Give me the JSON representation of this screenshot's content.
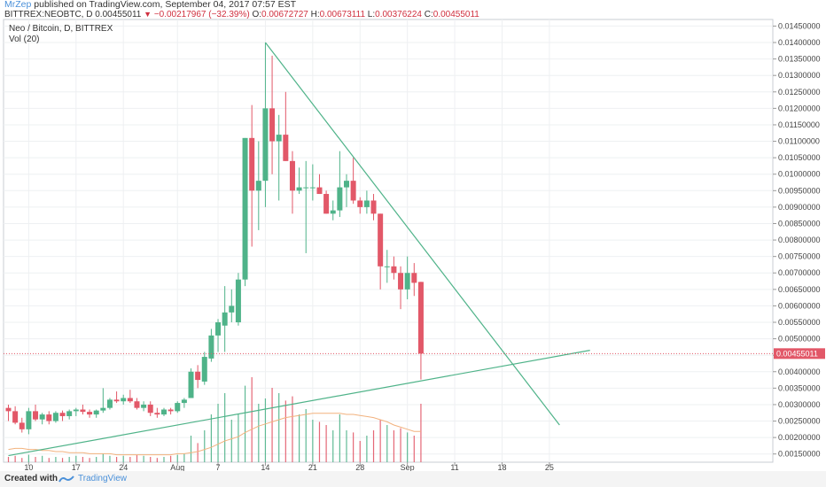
{
  "header": {
    "author": "MrZep",
    "published": " published on TradingView.com, September 04, 2017 07:57 EST",
    "symbol": "BITTREX:NEOBTC, D",
    "price": "0.00455011",
    "change": "−0.00217967 (−32.39%)",
    "o_label": "O:",
    "o_value": "0.00672727",
    "h_label": "H:",
    "h_value": "0.00673111",
    "l_label": "L:",
    "l_value": "0.00376224",
    "c_label": "C:",
    "c_value": "0.00455011"
  },
  "legend": {
    "title": "Neo / Bitcoin, D, BITTREX",
    "volume": "Vol (20)"
  },
  "footer": {
    "created_with": "Created with",
    "brand": "TradingView"
  },
  "colors": {
    "up": "#4fb389",
    "down": "#e25868",
    "trendline": "#4fb389",
    "ma": "#f2b27e",
    "last_price": "#e25868",
    "grid": "#eef0f2"
  },
  "chart_data": {
    "type": "candlestick",
    "x_ticks": [
      "10",
      "17",
      "24",
      "Aug",
      "7",
      "14",
      "21",
      "28",
      "Sep",
      "11",
      "18",
      "25"
    ],
    "y_ticks": [
      "0.01450000",
      "0.01400000",
      "0.01350000",
      "0.01300000",
      "0.01250000",
      "0.01200000",
      "0.01150000",
      "0.01100000",
      "0.01050000",
      "0.01000000",
      "0.00950000",
      "0.00900000",
      "0.00850000",
      "0.00800000",
      "0.00750000",
      "0.00700000",
      "0.00650000",
      "0.00600000",
      "0.00550000",
      "0.00500000",
      "0.00450000",
      "0.00400000",
      "0.00350000",
      "0.00300000",
      "0.00250000",
      "0.00200000",
      "0.00150000"
    ],
    "ylim": [
      0.00125,
      0.0147
    ],
    "start_date": "2017-07-07",
    "last_price_label": "0.00455011",
    "candles": [
      {
        "o": 0.0029,
        "h": 0.003,
        "l": 0.0025,
        "c": 0.0028
      },
      {
        "o": 0.0028,
        "h": 0.00295,
        "l": 0.0024,
        "c": 0.00245
      },
      {
        "o": 0.00245,
        "h": 0.0026,
        "l": 0.00215,
        "c": 0.00225
      },
      {
        "o": 0.00225,
        "h": 0.0029,
        "l": 0.0021,
        "c": 0.0028
      },
      {
        "o": 0.0028,
        "h": 0.003,
        "l": 0.0025,
        "c": 0.00255
      },
      {
        "o": 0.00255,
        "h": 0.00275,
        "l": 0.0024,
        "c": 0.0027
      },
      {
        "o": 0.0027,
        "h": 0.0028,
        "l": 0.0024,
        "c": 0.0025
      },
      {
        "o": 0.0025,
        "h": 0.0028,
        "l": 0.00245,
        "c": 0.00275
      },
      {
        "o": 0.00275,
        "h": 0.00282,
        "l": 0.0025,
        "c": 0.00265
      },
      {
        "o": 0.00265,
        "h": 0.00285,
        "l": 0.00255,
        "c": 0.0028
      },
      {
        "o": 0.0028,
        "h": 0.0029,
        "l": 0.00265,
        "c": 0.00285
      },
      {
        "o": 0.00285,
        "h": 0.003,
        "l": 0.0027,
        "c": 0.00278
      },
      {
        "o": 0.00278,
        "h": 0.00285,
        "l": 0.0026,
        "c": 0.0027
      },
      {
        "o": 0.0027,
        "h": 0.00285,
        "l": 0.0026,
        "c": 0.00282
      },
      {
        "o": 0.00282,
        "h": 0.0035,
        "l": 0.00275,
        "c": 0.0029
      },
      {
        "o": 0.0029,
        "h": 0.0032,
        "l": 0.00285,
        "c": 0.00315
      },
      {
        "o": 0.00315,
        "h": 0.0034,
        "l": 0.00305,
        "c": 0.0031
      },
      {
        "o": 0.0031,
        "h": 0.0033,
        "l": 0.003,
        "c": 0.0032
      },
      {
        "o": 0.0032,
        "h": 0.00345,
        "l": 0.00305,
        "c": 0.0031
      },
      {
        "o": 0.0031,
        "h": 0.0032,
        "l": 0.00285,
        "c": 0.0029
      },
      {
        "o": 0.0029,
        "h": 0.0031,
        "l": 0.0028,
        "c": 0.003
      },
      {
        "o": 0.003,
        "h": 0.0031,
        "l": 0.00265,
        "c": 0.00275
      },
      {
        "o": 0.00275,
        "h": 0.0029,
        "l": 0.0026,
        "c": 0.0027
      },
      {
        "o": 0.0027,
        "h": 0.0029,
        "l": 0.00265,
        "c": 0.00285
      },
      {
        "o": 0.00285,
        "h": 0.0029,
        "l": 0.0027,
        "c": 0.0028
      },
      {
        "o": 0.0028,
        "h": 0.0031,
        "l": 0.00275,
        "c": 0.00305
      },
      {
        "o": 0.00305,
        "h": 0.0032,
        "l": 0.0029,
        "c": 0.00315
      },
      {
        "o": 0.0032,
        "h": 0.0041,
        "l": 0.0032,
        "c": 0.004
      },
      {
        "o": 0.004,
        "h": 0.0042,
        "l": 0.0035,
        "c": 0.00375
      },
      {
        "o": 0.0037,
        "h": 0.0046,
        "l": 0.0036,
        "c": 0.00445
      },
      {
        "o": 0.0044,
        "h": 0.0053,
        "l": 0.0043,
        "c": 0.0051
      },
      {
        "o": 0.0051,
        "h": 0.0056,
        "l": 0.0046,
        "c": 0.0055
      },
      {
        "o": 0.0054,
        "h": 0.0066,
        "l": 0.0046,
        "c": 0.0058
      },
      {
        "o": 0.0058,
        "h": 0.0065,
        "l": 0.0055,
        "c": 0.006
      },
      {
        "o": 0.0055,
        "h": 0.007,
        "l": 0.0054,
        "c": 0.0068
      },
      {
        "o": 0.0068,
        "h": 0.0111,
        "l": 0.0066,
        "c": 0.0111
      },
      {
        "o": 0.0111,
        "h": 0.0121,
        "l": 0.0078,
        "c": 0.0095
      },
      {
        "o": 0.0095,
        "h": 0.011,
        "l": 0.0083,
        "c": 0.0098
      },
      {
        "o": 0.0098,
        "h": 0.014,
        "l": 0.009,
        "c": 0.012
      },
      {
        "o": 0.012,
        "h": 0.0136,
        "l": 0.01,
        "c": 0.011
      },
      {
        "o": 0.011,
        "h": 0.0118,
        "l": 0.0092,
        "c": 0.0112
      },
      {
        "o": 0.0112,
        "h": 0.0125,
        "l": 0.0104,
        "c": 0.0104
      },
      {
        "o": 0.0104,
        "h": 0.0107,
        "l": 0.0088,
        "c": 0.0095
      },
      {
        "o": 0.0095,
        "h": 0.0102,
        "l": 0.0094,
        "c": 0.0096
      },
      {
        "o": 0.0096,
        "h": 0.0104,
        "l": 0.0076,
        "c": 0.0096
      },
      {
        "o": 0.0096,
        "h": 0.0103,
        "l": 0.0092,
        "c": 0.0096
      },
      {
        "o": 0.0096,
        "h": 0.01,
        "l": 0.0094,
        "c": 0.0094
      },
      {
        "o": 0.0094,
        "h": 0.0095,
        "l": 0.0088,
        "c": 0.0088
      },
      {
        "o": 0.0088,
        "h": 0.0092,
        "l": 0.0086,
        "c": 0.0089
      },
      {
        "o": 0.0089,
        "h": 0.0107,
        "l": 0.0087,
        "c": 0.0096
      },
      {
        "o": 0.0096,
        "h": 0.01,
        "l": 0.009,
        "c": 0.0098
      },
      {
        "o": 0.0098,
        "h": 0.0105,
        "l": 0.0091,
        "c": 0.0092
      },
      {
        "o": 0.0092,
        "h": 0.0093,
        "l": 0.0088,
        "c": 0.009
      },
      {
        "o": 0.009,
        "h": 0.0095,
        "l": 0.0088,
        "c": 0.0092
      },
      {
        "o": 0.0092,
        "h": 0.0094,
        "l": 0.0086,
        "c": 0.0088
      },
      {
        "o": 0.0088,
        "h": 0.0088,
        "l": 0.0065,
        "c": 0.0072
      },
      {
        "o": 0.0072,
        "h": 0.0077,
        "l": 0.0067,
        "c": 0.0072
      },
      {
        "o": 0.0072,
        "h": 0.0075,
        "l": 0.0068,
        "c": 0.007
      },
      {
        "o": 0.007,
        "h": 0.0072,
        "l": 0.0059,
        "c": 0.0065
      },
      {
        "o": 0.0065,
        "h": 0.0075,
        "l": 0.0062,
        "c": 0.007
      },
      {
        "o": 0.007,
        "h": 0.0073,
        "l": 0.0063,
        "c": 0.0067
      },
      {
        "o": 0.00672727,
        "h": 0.00673111,
        "l": 0.00376224,
        "c": 0.00455011
      }
    ],
    "volume_relative": [
      0.05,
      0.06,
      0.04,
      0.07,
      0.05,
      0.06,
      0.04,
      0.05,
      0.04,
      0.05,
      0.06,
      0.05,
      0.04,
      0.05,
      0.08,
      0.06,
      0.05,
      0.06,
      0.05,
      0.07,
      0.06,
      0.05,
      0.04,
      0.05,
      0.06,
      0.07,
      0.08,
      0.25,
      0.18,
      0.3,
      0.45,
      0.55,
      0.65,
      0.4,
      0.45,
      0.72,
      0.8,
      0.55,
      0.6,
      0.7,
      0.65,
      0.58,
      0.62,
      0.45,
      0.5,
      0.4,
      0.38,
      0.35,
      0.3,
      0.45,
      0.3,
      0.28,
      0.2,
      0.25,
      0.3,
      0.4,
      0.35,
      0.3,
      0.32,
      0.28,
      0.25,
      0.55
    ],
    "ma_relative": [
      0.12,
      0.13,
      0.13,
      0.12,
      0.12,
      0.11,
      0.11,
      0.1,
      0.1,
      0.09,
      0.09,
      0.09,
      0.08,
      0.08,
      0.08,
      0.08,
      0.07,
      0.07,
      0.07,
      0.07,
      0.07,
      0.07,
      0.07,
      0.07,
      0.07,
      0.08,
      0.08,
      0.09,
      0.1,
      0.12,
      0.14,
      0.17,
      0.2,
      0.22,
      0.24,
      0.28,
      0.31,
      0.34,
      0.36,
      0.38,
      0.4,
      0.42,
      0.43,
      0.44,
      0.45,
      0.46,
      0.46,
      0.46,
      0.46,
      0.46,
      0.45,
      0.45,
      0.44,
      0.43,
      0.42,
      0.4,
      0.38,
      0.35,
      0.33,
      0.31,
      0.29,
      0.29
    ],
    "trendlines": [
      {
        "name": "descending",
        "x1_index": 38,
        "y1": 0.014,
        "x2_index": 81.5,
        "y2": 0.00238
      },
      {
        "name": "ascending",
        "x1_index": 0,
        "y1": 0.00145,
        "x2_index": 86,
        "y2": 0.00465
      }
    ]
  }
}
